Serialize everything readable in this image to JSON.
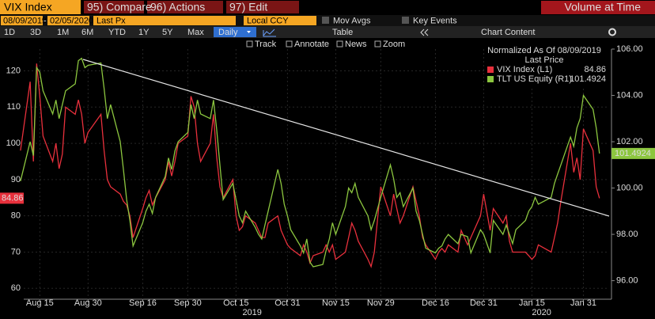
{
  "toolbar": {
    "ticker": "VIX Index",
    "menus": [
      "95) Compare",
      "96) Actions",
      "97) Edit"
    ],
    "right": "Volume at Time"
  },
  "settings": {
    "start": "08/09/2019",
    "separator": "-",
    "end": "02/05/2020",
    "field": "Last Px",
    "currency": "Local CCY",
    "options": [
      "Mov Avgs",
      "Key Events"
    ]
  },
  "periods": {
    "items": [
      "1D",
      "3D",
      "1M",
      "6M",
      "YTD",
      "1Y",
      "5Y",
      "Max"
    ],
    "frequency": "Daily",
    "table": "Table",
    "content": "Chart Content"
  },
  "tools": [
    "Track",
    "Annotate",
    "News",
    "Zoom"
  ],
  "chart_data": {
    "type": "line",
    "legend_title": "Normalized As Of 08/09/2019",
    "legend_subtitle": "Last Price",
    "x": [
      "2019-08-09",
      "2019-08-12",
      "2019-08-13",
      "2019-08-14",
      "2019-08-15",
      "2019-08-16",
      "2019-08-19",
      "2019-08-20",
      "2019-08-21",
      "2019-08-22",
      "2019-08-23",
      "2019-08-26",
      "2019-08-27",
      "2019-08-28",
      "2019-08-29",
      "2019-08-30",
      "2019-09-03",
      "2019-09-04",
      "2019-09-05",
      "2019-09-06",
      "2019-09-09",
      "2019-09-10",
      "2019-09-11",
      "2019-09-12",
      "2019-09-13",
      "2019-09-16",
      "2019-09-17",
      "2019-09-18",
      "2019-09-19",
      "2019-09-20",
      "2019-09-23",
      "2019-09-24",
      "2019-09-25",
      "2019-09-26",
      "2019-09-27",
      "2019-09-30",
      "2019-10-01",
      "2019-10-02",
      "2019-10-03",
      "2019-10-04",
      "2019-10-07",
      "2019-10-08",
      "2019-10-09",
      "2019-10-10",
      "2019-10-11",
      "2019-10-14",
      "2019-10-15",
      "2019-10-16",
      "2019-10-17",
      "2019-10-18",
      "2019-10-21",
      "2019-10-22",
      "2019-10-23",
      "2019-10-24",
      "2019-10-25",
      "2019-10-28",
      "2019-10-29",
      "2019-10-30",
      "2019-10-31",
      "2019-11-01",
      "2019-11-04",
      "2019-11-05",
      "2019-11-06",
      "2019-11-07",
      "2019-11-08",
      "2019-11-11",
      "2019-11-12",
      "2019-11-13",
      "2019-11-14",
      "2019-11-15",
      "2019-11-18",
      "2019-11-19",
      "2019-11-20",
      "2019-11-21",
      "2019-11-22",
      "2019-11-25",
      "2019-11-26",
      "2019-11-27",
      "2019-11-29",
      "2019-12-02",
      "2019-12-03",
      "2019-12-04",
      "2019-12-05",
      "2019-12-06",
      "2019-12-09",
      "2019-12-10",
      "2019-12-11",
      "2019-12-12",
      "2019-12-13",
      "2019-12-16",
      "2019-12-17",
      "2019-12-18",
      "2019-12-19",
      "2019-12-20",
      "2019-12-23",
      "2019-12-24",
      "2019-12-26",
      "2019-12-27",
      "2019-12-30",
      "2019-12-31",
      "2020-01-02",
      "2020-01-03",
      "2020-01-06",
      "2020-01-07",
      "2020-01-08",
      "2020-01-09",
      "2020-01-10",
      "2020-01-13",
      "2020-01-14",
      "2020-01-15",
      "2020-01-16",
      "2020-01-17",
      "2020-01-21",
      "2020-01-22",
      "2020-01-23",
      "2020-01-24",
      "2020-01-27",
      "2020-01-28",
      "2020-01-29",
      "2020-01-30",
      "2020-01-31",
      "2020-02-03",
      "2020-02-04",
      "2020-02-05"
    ],
    "series": [
      {
        "name": "VIX Index (L1)",
        "color": "#e8303c",
        "values": [
          98,
          117,
          95,
          122,
          113,
          102,
          95,
          100,
          93,
          97,
          110,
          108,
          112,
          108,
          100,
          103,
          108,
          98,
          90,
          88,
          86,
          84,
          83,
          80,
          74,
          82,
          85,
          87,
          83,
          85,
          90,
          95,
          91,
          95,
          100,
          102,
          113,
          110,
          100,
          95,
          100,
          108,
          96,
          88,
          85,
          90,
          80,
          76,
          77,
          80,
          78,
          76,
          74,
          74,
          78,
          80,
          76,
          74,
          72,
          71,
          69,
          72,
          70,
          67,
          69,
          70,
          72,
          70,
          72,
          68,
          70,
          74,
          78,
          76,
          73,
          68,
          66,
          70,
          88,
          80,
          86,
          82,
          78,
          80,
          88,
          84,
          80,
          74,
          72,
          68,
          70,
          71,
          70,
          72,
          70,
          76,
          72,
          74,
          80,
          86,
          76,
          82,
          78,
          80,
          73,
          70,
          70,
          70,
          69,
          68,
          69,
          72,
          70,
          74,
          78,
          84,
          100,
          92,
          96,
          90,
          104,
          98,
          88,
          84.86
        ]
      },
      {
        "name": "TLT US Equity (R1)",
        "color": "#8cc63f",
        "axis": "y2",
        "values": [
          100.3,
          102.0,
          101.4,
          105.2,
          105.0,
          104.2,
          103.2,
          103.8,
          103.0,
          103.6,
          104.2,
          104.5,
          105.5,
          105.6,
          105.2,
          105.3,
          105.4,
          104.3,
          103.0,
          103.6,
          102.0,
          100.8,
          99.5,
          98.6,
          97.5,
          98.5,
          99.0,
          99.3,
          98.9,
          99.6,
          100.5,
          101.3,
          100.8,
          101.6,
          102.0,
          102.4,
          103.6,
          103.0,
          103.8,
          103.2,
          103.0,
          103.8,
          102.5,
          101.0,
          99.5,
          100.2,
          99.5,
          98.8,
          98.5,
          99.0,
          98.3,
          98.0,
          97.8,
          98.4,
          99.0,
          100.8,
          100.2,
          99.3,
          98.8,
          98.2,
          97.5,
          97.2,
          97.8,
          96.8,
          96.6,
          96.7,
          97.3,
          97.8,
          98.5,
          98.0,
          99.2,
          100.0,
          99.8,
          100.2,
          99.6,
          98.8,
          98.2,
          98.6,
          99.6,
          101.0,
          100.4,
          99.6,
          99.8,
          99.2,
          100.0,
          99.0,
          98.6,
          98.0,
          97.4,
          97.2,
          97.4,
          97.5,
          97.8,
          98.0,
          97.6,
          98.0,
          97.9,
          97.2,
          98.2,
          98.0,
          97.2,
          98.6,
          98.0,
          98.4,
          98.0,
          97.6,
          98.2,
          98.6,
          99.0,
          99.2,
          99.6,
          99.3,
          99.6,
          100.2,
          100.6,
          101.0,
          102.2,
          101.8,
          102.6,
          103.0,
          104.0,
          103.4,
          102.6,
          101.4924
        ]
      }
    ],
    "xlim": [
      "2019-08-10",
      "2020-02-08"
    ],
    "xticks": [
      {
        "value": "2019-08-15",
        "label": "Aug 15"
      },
      {
        "value": "2019-08-30",
        "label": "Aug 30"
      },
      {
        "value": "2019-09-16",
        "label": "Sep 16"
      },
      {
        "value": "2019-09-30",
        "label": "Sep 30"
      },
      {
        "value": "2019-10-15",
        "label": "Oct 15"
      },
      {
        "value": "2019-10-31",
        "label": "Oct 31"
      },
      {
        "value": "2019-11-15",
        "label": "Nov 15"
      },
      {
        "value": "2019-11-29",
        "label": "Nov 29"
      },
      {
        "value": "2019-12-16",
        "label": "Dec 16"
      },
      {
        "value": "2019-12-31",
        "label": "Dec 31"
      },
      {
        "value": "2020-01-15",
        "label": "Jan 15"
      },
      {
        "value": "2020-01-31",
        "label": "Jan 31"
      }
    ],
    "year_labels": [
      {
        "value": "2019-10-20",
        "label": "2019"
      },
      {
        "value": "2020-01-18",
        "label": "2020"
      }
    ],
    "ylim": [
      57,
      126
    ],
    "yticks": [
      60,
      70,
      80,
      90,
      100,
      110,
      120
    ],
    "y2lim": [
      95.2,
      106
    ],
    "y2ticks": [
      {
        "value": 96,
        "label": "96.00"
      },
      {
        "value": 98,
        "label": "98.00"
      },
      {
        "value": 100,
        "label": "100.00"
      },
      {
        "value": 102,
        "label": "102.00"
      },
      {
        "value": 104,
        "label": "104.00"
      },
      {
        "value": 106,
        "label": "106.00"
      }
    ],
    "grid": true
  }
}
